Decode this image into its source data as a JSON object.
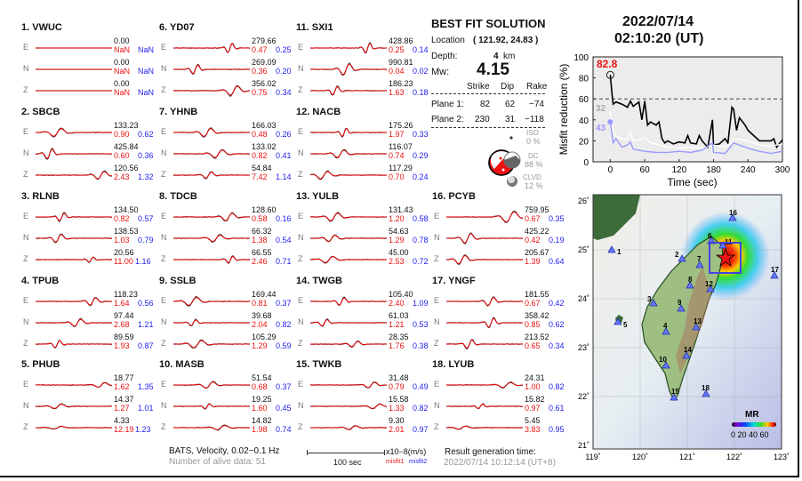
{
  "stations": [
    {
      "num": "1.",
      "name": "VWUC",
      "rows": [
        {
          "comp": "E",
          "amp": "0.00",
          "m1": "NaN",
          "m2": "NaN"
        },
        {
          "comp": "N",
          "amp": "0.00",
          "m1": "NaN",
          "m2": "NaN"
        },
        {
          "comp": "Z",
          "amp": "0.00",
          "m1": "NaN",
          "m2": "NaN"
        }
      ]
    },
    {
      "num": "2.",
      "name": "SBCB",
      "rows": [
        {
          "comp": "E",
          "amp": "133.23",
          "m1": "0.90",
          "m2": "0.62"
        },
        {
          "comp": "N",
          "amp": "425.84",
          "m1": "0.60",
          "m2": "0.36"
        },
        {
          "comp": "Z",
          "amp": "120.56",
          "m1": "2.43",
          "m2": "1.32"
        }
      ]
    },
    {
      "num": "3.",
      "name": "RLNB",
      "rows": [
        {
          "comp": "E",
          "amp": "134.50",
          "m1": "0.82",
          "m2": "0.57"
        },
        {
          "comp": "N",
          "amp": "138.53",
          "m1": "1.03",
          "m2": "0.79"
        },
        {
          "comp": "Z",
          "amp": "20.56",
          "m1": "11.00",
          "m2": "1.16"
        }
      ]
    },
    {
      "num": "4.",
      "name": "TPUB",
      "rows": [
        {
          "comp": "E",
          "amp": "118.23",
          "m1": "1.64",
          "m2": "0.56"
        },
        {
          "comp": "N",
          "amp": "97.44",
          "m1": "2.68",
          "m2": "1.21"
        },
        {
          "comp": "Z",
          "amp": "89.59",
          "m1": "1.93",
          "m2": "0.87"
        }
      ]
    },
    {
      "num": "5.",
      "name": "PHUB",
      "rows": [
        {
          "comp": "E",
          "amp": "18.77",
          "m1": "1.62",
          "m2": "1.35"
        },
        {
          "comp": "N",
          "amp": "14.37",
          "m1": "1.27",
          "m2": "1.01"
        },
        {
          "comp": "Z",
          "amp": "4.33",
          "m1": "12.19",
          "m2": "1.23"
        }
      ]
    },
    {
      "num": "6.",
      "name": "YD07",
      "rows": [
        {
          "comp": "E",
          "amp": "279.66",
          "m1": "0.47",
          "m2": "0.25"
        },
        {
          "comp": "N",
          "amp": "269.09",
          "m1": "0.36",
          "m2": "0.20"
        },
        {
          "comp": "Z",
          "amp": "356.02",
          "m1": "0.75",
          "m2": "0.34"
        }
      ]
    },
    {
      "num": "7.",
      "name": "YHNB",
      "rows": [
        {
          "comp": "E",
          "amp": "166.03",
          "m1": "0.48",
          "m2": "0.26"
        },
        {
          "comp": "N",
          "amp": "133.02",
          "m1": "0.82",
          "m2": "0.41"
        },
        {
          "comp": "Z",
          "amp": "54.84",
          "m1": "7.42",
          "m2": "1.14"
        }
      ]
    },
    {
      "num": "8.",
      "name": "TDCB",
      "rows": [
        {
          "comp": "E",
          "amp": "128.60",
          "m1": "0.58",
          "m2": "0.16"
        },
        {
          "comp": "N",
          "amp": "66.32",
          "m1": "1.38",
          "m2": "0.54"
        },
        {
          "comp": "Z",
          "amp": "66.55",
          "m1": "2.46",
          "m2": "0.71"
        }
      ]
    },
    {
      "num": "9.",
      "name": "SSLB",
      "rows": [
        {
          "comp": "E",
          "amp": "169.44",
          "m1": "0.81",
          "m2": "0.37"
        },
        {
          "comp": "N",
          "amp": "39.68",
          "m1": "2.04",
          "m2": "0.82"
        },
        {
          "comp": "Z",
          "amp": "105.29",
          "m1": "1.29",
          "m2": "0.59"
        }
      ]
    },
    {
      "num": "10.",
      "name": "MASB",
      "rows": [
        {
          "comp": "E",
          "amp": "51.54",
          "m1": "0.68",
          "m2": "0.37"
        },
        {
          "comp": "N",
          "amp": "19.25",
          "m1": "1.60",
          "m2": "0.45"
        },
        {
          "comp": "Z",
          "amp": "14.82",
          "m1": "1.98",
          "m2": "0.74"
        }
      ]
    },
    {
      "num": "11.",
      "name": "SXI1",
      "rows": [
        {
          "comp": "E",
          "amp": "428.86",
          "m1": "0.25",
          "m2": "0.14"
        },
        {
          "comp": "N",
          "amp": "990.81",
          "m1": "0.04",
          "m2": "0.02"
        },
        {
          "comp": "Z",
          "amp": "186.23",
          "m1": "1.63",
          "m2": "0.18"
        }
      ]
    },
    {
      "num": "12.",
      "name": "NACB",
      "rows": [
        {
          "comp": "E",
          "amp": "175.26",
          "m1": "1.97",
          "m2": "0.33"
        },
        {
          "comp": "N",
          "amp": "116.07",
          "m1": "0.74",
          "m2": "0.29"
        },
        {
          "comp": "Z",
          "amp": "117.29",
          "m1": "0.70",
          "m2": "0.24"
        }
      ]
    },
    {
      "num": "13.",
      "name": "YULB",
      "rows": [
        {
          "comp": "E",
          "amp": "131.43",
          "m1": "1.20",
          "m2": "0.58"
        },
        {
          "comp": "N",
          "amp": "54.63",
          "m1": "1.29",
          "m2": "0.78"
        },
        {
          "comp": "Z",
          "amp": "45.00",
          "m1": "2.53",
          "m2": "0.72"
        }
      ]
    },
    {
      "num": "14.",
      "name": "TWGB",
      "rows": [
        {
          "comp": "E",
          "amp": "105.40",
          "m1": "2.40",
          "m2": "1.09"
        },
        {
          "comp": "N",
          "amp": "61.03",
          "m1": "1.21",
          "m2": "0.53"
        },
        {
          "comp": "Z",
          "amp": "28.35",
          "m1": "1.76",
          "m2": "0.38"
        }
      ]
    },
    {
      "num": "15.",
      "name": "TWKB",
      "rows": [
        {
          "comp": "E",
          "amp": "31.48",
          "m1": "0.79",
          "m2": "0.49"
        },
        {
          "comp": "N",
          "amp": "15.58",
          "m1": "1.33",
          "m2": "0.82"
        },
        {
          "comp": "Z",
          "amp": "9.30",
          "m1": "2.01",
          "m2": "0.97"
        }
      ]
    },
    {
      "num": "16.",
      "name": "PCYB",
      "rows": [
        {
          "comp": "E",
          "amp": "759.95",
          "m1": "0.67",
          "m2": "0.35"
        },
        {
          "comp": "N",
          "amp": "425.22",
          "m1": "0.42",
          "m2": "0.19"
        },
        {
          "comp": "Z",
          "amp": "205.67",
          "m1": "1.39",
          "m2": "0.64"
        }
      ]
    },
    {
      "num": "17.",
      "name": "YNGF",
      "rows": [
        {
          "comp": "E",
          "amp": "181.55",
          "m1": "0.67",
          "m2": "0.42"
        },
        {
          "comp": "N",
          "amp": "358.42",
          "m1": "0.85",
          "m2": "0.62"
        },
        {
          "comp": "Z",
          "amp": "213.52",
          "m1": "0.65",
          "m2": "0.34"
        }
      ]
    },
    {
      "num": "18.",
      "name": "LYUB",
      "rows": [
        {
          "comp": "E",
          "amp": "24.31",
          "m1": "1.00",
          "m2": "0.82"
        },
        {
          "comp": "N",
          "amp": "15.82",
          "m1": "0.97",
          "m2": "0.61"
        },
        {
          "comp": "Z",
          "amp": "5.45",
          "m1": "3.83",
          "m2": "0.95"
        }
      ]
    }
  ],
  "solution": {
    "title": "BEST FIT SOLUTION",
    "location_label": "Location",
    "location_value": "( 121.92,  24.83 )",
    "depth_label": "Depth:",
    "depth_value": "4",
    "depth_unit": "km",
    "mw_label": "Mw:",
    "mw_value": "4.15",
    "headers": [
      "Strike",
      "Dip",
      "Rake"
    ],
    "planes": [
      {
        "label": "Plane 1:",
        "strike": "82",
        "dip": "62",
        "rake": "−74"
      },
      {
        "label": "Plane 2:",
        "strike": "230",
        "dip": "31",
        "rake": "−118"
      }
    ],
    "components": [
      {
        "label": "ISO",
        "percent": "0 %"
      },
      {
        "label": "DC",
        "percent": "88 %"
      },
      {
        "label": "CLVD",
        "percent": "12 %"
      }
    ]
  },
  "footer": {
    "network": "BATS, Velocity, 0.02−0.1 Hz",
    "alive": "Number of alive data: 51",
    "scale_label": "100 sec",
    "unit": "x10−8(m/s)",
    "misfit1": "misfit1",
    "misfit2": "misfit2",
    "gen_label": "Result generation time:",
    "gen_time": "2022/07/14  10:12:14  (UT+8)"
  },
  "event": {
    "date": "2022/07/14",
    "time": "02:10:20  (UT)"
  },
  "chart_data": {
    "type": "line",
    "xlabel": "Time (sec)",
    "ylabel": "Misfit reduction (%)",
    "xlim": [
      -30,
      300
    ],
    "ylim": [
      0,
      100
    ],
    "xticks": [
      "0",
      "60",
      "120",
      "180",
      "240",
      "300"
    ],
    "yticks": [
      "0",
      "20",
      "40",
      "60",
      "80",
      "100"
    ],
    "threshold": 60,
    "max_label": "82.8",
    "annotations": [
      "32",
      "43"
    ],
    "series": [
      {
        "color": "#000000",
        "x": [
          0,
          3,
          5,
          10,
          20,
          30,
          35,
          40,
          50,
          55,
          60,
          65,
          70,
          80,
          85,
          90,
          95,
          100,
          110,
          120,
          130,
          135,
          140,
          150,
          155,
          160,
          170,
          178,
          180,
          190,
          200,
          205,
          212,
          215,
          220,
          225,
          235,
          240,
          250,
          260,
          270,
          280,
          285,
          290,
          300
        ],
        "y": [
          82.8,
          65,
          55,
          57,
          55,
          52,
          58,
          53,
          57,
          40,
          58,
          35,
          38,
          35,
          38,
          22,
          18,
          20,
          17,
          19,
          18,
          25,
          18,
          17,
          25,
          20,
          14,
          40,
          16,
          17,
          22,
          18,
          52,
          50,
          30,
          42,
          35,
          30,
          25,
          20,
          20,
          20,
          22,
          14,
          21
        ]
      },
      {
        "color": "#ffffff",
        "x": [
          0,
          5,
          10,
          20,
          30,
          35,
          40,
          60,
          70,
          80,
          100,
          120,
          140,
          160,
          180,
          200,
          210,
          215,
          240,
          260,
          280,
          300
        ],
        "y": [
          48,
          30,
          25,
          22,
          22,
          28,
          20,
          23,
          18,
          17,
          14,
          13,
          14,
          13,
          16,
          14,
          18,
          22,
          20,
          16,
          15,
          17
        ]
      },
      {
        "color": "#9999ff",
        "x": [
          0,
          5,
          10,
          20,
          30,
          35,
          40,
          60,
          80,
          100,
          120,
          140,
          160,
          178,
          180,
          200,
          215,
          240,
          260,
          280,
          300
        ],
        "y": [
          38,
          18,
          22,
          14,
          16,
          19,
          12,
          10,
          9,
          9,
          10,
          9,
          11,
          18,
          9,
          8,
          18,
          13,
          10,
          8,
          10
        ]
      }
    ]
  },
  "map": {
    "lon_labels": [
      "119˚",
      "120˚",
      "121˚",
      "122˚",
      "123˚"
    ],
    "lat_labels": [
      "26˚",
      "25˚",
      "24˚",
      "23˚",
      "22˚",
      "21˚"
    ],
    "colorbar_title": "MR",
    "colorbar_labels": "0 20 40 60",
    "station_labels": [
      "1",
      "2",
      "3",
      "4",
      "5",
      "6",
      "7",
      "8",
      "9",
      "10",
      "11",
      "12",
      "13",
      "14",
      "15",
      "16",
      "17",
      "18"
    ]
  }
}
